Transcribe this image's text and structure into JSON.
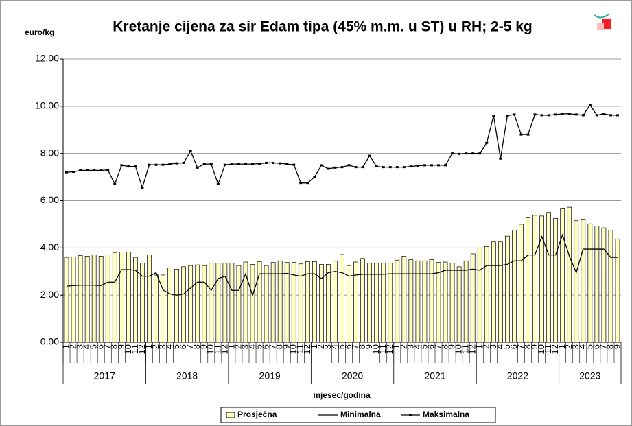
{
  "chart_data": {
    "type": "bar",
    "title": "Kretanje cijena za sir Edam tipa  (45% m.m. u ST) u RH; 2-5 kg",
    "y_axis_label": "euro/kg",
    "x_axis_label": "mjesec/godina",
    "categories": [
      "1",
      "2",
      "3",
      "4",
      "5",
      "6",
      "7",
      "8",
      "9",
      "10",
      "11",
      "12",
      "1",
      "2",
      "3",
      "4",
      "5",
      "6",
      "7",
      "8",
      "9",
      "10",
      "11",
      "12",
      "1",
      "2",
      "3",
      "4",
      "5",
      "6",
      "7",
      "8",
      "9",
      "10",
      "11",
      "12",
      "1",
      "2",
      "3",
      "4",
      "5",
      "6",
      "7",
      "8",
      "9",
      "10",
      "11",
      "12",
      "1",
      "2",
      "3",
      "4",
      "5",
      "6",
      "7",
      "8",
      "9",
      "10",
      "11",
      "12",
      "1",
      "2",
      "3",
      "4",
      "5",
      "6",
      "7",
      "8",
      "9",
      "10",
      "11",
      "12",
      "1",
      "2",
      "3",
      "4",
      "5",
      "6",
      "7",
      "8",
      "9"
    ],
    "groups": [
      "2017",
      "2018",
      "2019",
      "2020",
      "2021",
      "2022",
      "2023"
    ],
    "ylim": [
      0,
      12
    ],
    "yticks": [
      {
        "value": 0,
        "label": "0,00"
      },
      {
        "value": 2,
        "label": "2,00"
      },
      {
        "value": 4,
        "label": "4,00"
      },
      {
        "value": 6,
        "label": "6,00"
      },
      {
        "value": 8,
        "label": "8,00"
      },
      {
        "value": 10,
        "label": "10,00"
      },
      {
        "value": 12,
        "label": "12,00"
      }
    ],
    "grid": true,
    "series": [
      {
        "name": "Prosječna",
        "type": "bar",
        "color": "#ffffc0",
        "values": [
          3.6,
          3.62,
          3.68,
          3.65,
          3.7,
          3.65,
          3.7,
          3.8,
          3.82,
          3.82,
          3.6,
          3.35,
          3.7,
          2.85,
          2.85,
          3.15,
          3.1,
          3.2,
          3.25,
          3.28,
          3.25,
          3.35,
          3.35,
          3.35,
          3.35,
          3.25,
          3.4,
          3.3,
          3.42,
          3.25,
          3.38,
          3.45,
          3.38,
          3.38,
          3.32,
          3.42,
          3.42,
          3.3,
          3.3,
          3.45,
          3.72,
          3.25,
          3.4,
          3.55,
          3.35,
          3.35,
          3.35,
          3.35,
          3.48,
          3.65,
          3.5,
          3.45,
          3.45,
          3.5,
          3.38,
          3.4,
          3.35,
          3.2,
          3.45,
          3.75,
          4.0,
          4.05,
          4.25,
          4.25,
          4.5,
          4.75,
          5.0,
          5.28,
          5.38,
          5.35,
          5.5,
          5.25,
          5.68,
          5.72,
          5.15,
          5.22,
          5.02,
          4.92,
          4.85,
          4.75,
          4.38
        ]
      },
      {
        "name": "Minimalna",
        "type": "line",
        "color": "#000000",
        "values": [
          2.38,
          2.4,
          2.42,
          2.42,
          2.42,
          2.4,
          2.55,
          2.55,
          3.08,
          3.08,
          3.05,
          2.8,
          2.8,
          2.95,
          2.22,
          2.05,
          2.0,
          2.05,
          2.3,
          2.55,
          2.55,
          2.2,
          2.7,
          2.8,
          2.2,
          2.2,
          2.9,
          1.98,
          2.9,
          2.9,
          2.9,
          2.9,
          2.92,
          2.85,
          2.8,
          2.9,
          2.9,
          2.7,
          2.95,
          3.0,
          2.95,
          2.8,
          2.85,
          2.88,
          2.88,
          2.88,
          2.88,
          2.9,
          2.9,
          2.9,
          2.9,
          2.9,
          2.9,
          2.9,
          2.95,
          3.05,
          3.05,
          3.05,
          3.05,
          3.1,
          3.05,
          3.25,
          3.25,
          3.25,
          3.3,
          3.45,
          3.45,
          3.7,
          3.7,
          4.48,
          3.7,
          3.7,
          4.55,
          3.65,
          2.95,
          3.95,
          3.95,
          3.95,
          3.95,
          3.6,
          3.6
        ]
      },
      {
        "name": "Maksimalna",
        "type": "line",
        "marker": true,
        "color": "#000000",
        "values": [
          7.2,
          7.22,
          7.28,
          7.28,
          7.28,
          7.28,
          7.3,
          6.7,
          7.5,
          7.45,
          7.45,
          6.55,
          7.52,
          7.52,
          7.52,
          7.55,
          7.58,
          7.6,
          8.1,
          7.4,
          7.55,
          7.55,
          6.7,
          7.52,
          7.55,
          7.55,
          7.55,
          7.55,
          7.57,
          7.6,
          7.6,
          7.58,
          7.55,
          7.52,
          6.75,
          6.75,
          7.0,
          7.5,
          7.35,
          7.4,
          7.42,
          7.5,
          7.42,
          7.42,
          7.9,
          7.45,
          7.42,
          7.42,
          7.42,
          7.42,
          7.45,
          7.48,
          7.5,
          7.5,
          7.5,
          7.5,
          8.0,
          7.98,
          8.0,
          8.0,
          8.0,
          8.45,
          9.6,
          7.78,
          9.6,
          9.65,
          8.8,
          8.8,
          9.65,
          9.62,
          9.62,
          9.65,
          9.68,
          9.68,
          9.65,
          9.62,
          10.05,
          9.62,
          9.68,
          9.62,
          9.62
        ]
      }
    ]
  }
}
